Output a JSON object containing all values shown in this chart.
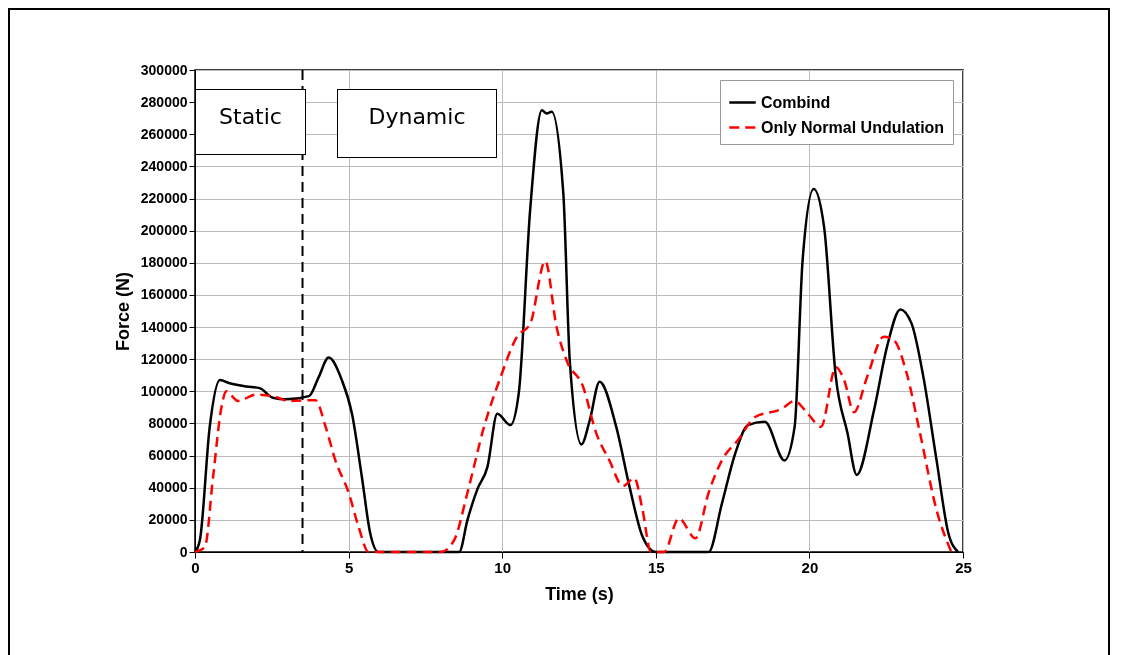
{
  "chart_data": {
    "type": "line",
    "xlabel": "Time (s)",
    "ylabel": "Force (N)",
    "xlim": [
      0,
      25
    ],
    "xticks": [
      0,
      5,
      10,
      15,
      20,
      25
    ],
    "ylim": [
      0,
      300000
    ],
    "yticks": [
      0,
      20000,
      40000,
      60000,
      80000,
      100000,
      120000,
      140000,
      160000,
      180000,
      200000,
      220000,
      240000,
      260000,
      280000,
      300000
    ],
    "grid": true,
    "legend": "top right",
    "marker": "none",
    "series": [
      {
        "name": "Combind",
        "color": "#000000",
        "line_style": "solid",
        "x": [
          0,
          0.16,
          0.48,
          0.81,
          1.13,
          1.67,
          2.1,
          2.53,
          2.96,
          3.71,
          4.03,
          4.35,
          4.78,
          5.11,
          5.43,
          5.7,
          5.97,
          8.6,
          8.87,
          9.19,
          9.52,
          9.84,
          10.27,
          10.54,
          10.91,
          11.29,
          11.45,
          11.61,
          11.99,
          12.2,
          12.58,
          12.85,
          13.17,
          13.71,
          14.14,
          14.57,
          15,
          16.72,
          17.15,
          17.58,
          18.0,
          18.55,
          19.19,
          19.52,
          19.78,
          20.14,
          20.48,
          20.86,
          21.24,
          21.54,
          22.1,
          22.53,
          22.96,
          23.33,
          23.71,
          24.14,
          24.52,
          24.84
        ],
        "values": [
          0,
          7500,
          78000,
          107000,
          105000,
          103000,
          102000,
          96000,
          95000,
          97000,
          109000,
          121000,
          107000,
          86000,
          47000,
          12000,
          0,
          0,
          20000,
          39000,
          53000,
          86000,
          79000,
          99000,
          213000,
          275000,
          273000,
          274000,
          223000,
          119000,
          67000,
          82000,
          106000,
          78000,
          41000,
          9500,
          0,
          0,
          30000,
          61000,
          79000,
          81000,
          57000,
          78000,
          182000,
          226000,
          202000,
          109000,
          74000,
          48000,
          88000,
          128000,
          151000,
          142000,
          109000,
          57000,
          12000,
          0
        ]
      },
      {
        "name": "Only Normal Undulation",
        "color": "#ff0000",
        "line_style": "dashed",
        "x": [
          0,
          0.32,
          0.59,
          0.86,
          1.02,
          1.4,
          1.99,
          2.53,
          3.06,
          3.92,
          4.25,
          4.57,
          5.0,
          5.32,
          5.65,
          8.01,
          8.44,
          8.87,
          9.41,
          9.95,
          10.48,
          10.91,
          11.4,
          11.77,
          12.1,
          12.63,
          13.06,
          13.49,
          13.93,
          14.3,
          14.57,
          14.84,
          15.27,
          15.75,
          16.29,
          16.72,
          17.15,
          17.69,
          18.23,
          19.09,
          19.52,
          19.95,
          20.38,
          20.86,
          21.13,
          21.45,
          21.88,
          22.42,
          22.74,
          23.17,
          23.6,
          24.14,
          24.62
        ],
        "values": [
          0,
          3000,
          47000,
          90000,
          100000,
          94000,
          98000,
          97000,
          94000,
          94500,
          78000,
          57000,
          37000,
          16000,
          0,
          0,
          7500,
          37000,
          78000,
          109000,
          134000,
          142000,
          181000,
          140000,
          119000,
          103000,
          74000,
          57000,
          41000,
          46000,
          26000,
          0,
          0,
          21000,
          8500,
          37000,
          57000,
          70000,
          84000,
          89000,
          94000,
          86000,
          78000,
          115000,
          107000,
          87000,
          109000,
          134000,
          132000,
          111000,
          74000,
          26000,
          0
        ]
      }
    ],
    "ref_lines": [
      {
        "axis": "x",
        "value": 3.5,
        "color": "#000000",
        "line_style": "dashed"
      }
    ],
    "annotations": [
      "Static",
      "Dynamic"
    ]
  }
}
